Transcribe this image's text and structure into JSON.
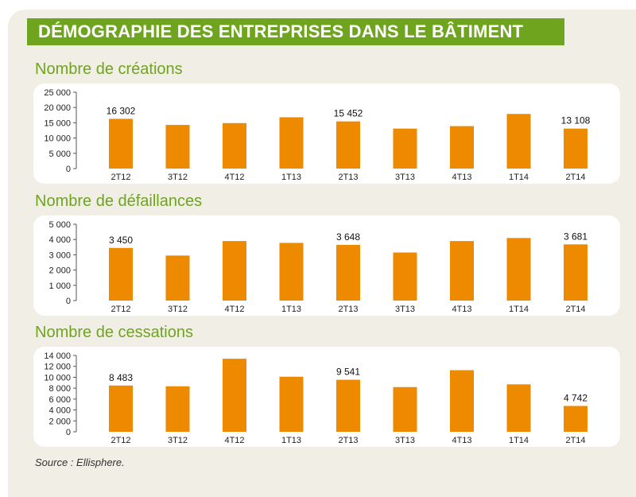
{
  "title": "DÉMOGRAPHIE DES ENTREPRISES DANS LE BÂTIMENT",
  "source": "Source : Ellisphere.",
  "colors": {
    "bar": "#ee8a00",
    "accent": "#6fa51e",
    "background": "#f0eee5"
  },
  "chart_data": [
    {
      "type": "bar",
      "title": "Nombre de créations",
      "categories": [
        "2T12",
        "3T12",
        "4T12",
        "1T13",
        "2T13",
        "3T13",
        "4T13",
        "1T14",
        "2T14"
      ],
      "values": [
        16302,
        14300,
        14900,
        16800,
        15452,
        13100,
        13900,
        17900,
        13108
      ],
      "data_labels": {
        "0": "16 302",
        "4": "15 452",
        "8": "13 108"
      },
      "ylim": [
        0,
        25000
      ],
      "yticks": [
        0,
        5000,
        10000,
        15000,
        20000,
        25000
      ],
      "ytick_labels": [
        "0",
        "5 000",
        "10 000",
        "15 000",
        "20 000",
        "25 000"
      ],
      "xlabel": "",
      "ylabel": ""
    },
    {
      "type": "bar",
      "title": "Nombre de défaillances",
      "categories": [
        "2T12",
        "3T12",
        "4T12",
        "1T13",
        "2T13",
        "3T13",
        "4T13",
        "1T14",
        "2T14"
      ],
      "values": [
        3450,
        2950,
        3900,
        3780,
        3648,
        3150,
        3900,
        4100,
        3681
      ],
      "data_labels": {
        "0": "3 450",
        "4": "3 648",
        "8": "3 681"
      },
      "ylim": [
        0,
        5000
      ],
      "yticks": [
        0,
        1000,
        2000,
        3000,
        4000,
        5000
      ],
      "ytick_labels": [
        "0",
        "1 000",
        "2 000",
        "3 000",
        "4 000",
        "5 000"
      ],
      "xlabel": "",
      "ylabel": ""
    },
    {
      "type": "bar",
      "title": "Nombre de cessations",
      "categories": [
        "2T12",
        "3T12",
        "4T12",
        "1T13",
        "2T13",
        "3T13",
        "4T13",
        "1T14",
        "2T14"
      ],
      "values": [
        8483,
        8350,
        13400,
        10100,
        9541,
        8200,
        11300,
        8700,
        4742
      ],
      "data_labels": {
        "0": "8 483",
        "4": "9 541",
        "8": "4 742"
      },
      "ylim": [
        0,
        14000
      ],
      "yticks": [
        0,
        2000,
        4000,
        6000,
        8000,
        10000,
        12000,
        14000
      ],
      "ytick_labels": [
        "0",
        "2 000",
        "4 000",
        "6 000",
        "8 000",
        "10 000",
        "12 000",
        "14 000"
      ],
      "xlabel": "",
      "ylabel": ""
    }
  ]
}
